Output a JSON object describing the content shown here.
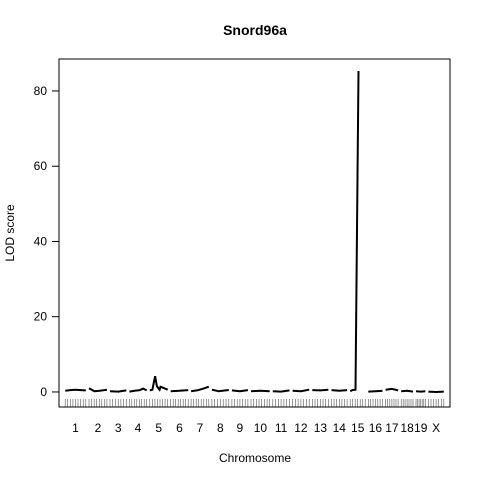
{
  "chart_data": {
    "type": "line",
    "title": "Snord96a",
    "xlabel": "Chromosome",
    "ylabel": "LOD score",
    "ylim": [
      -4,
      88.5
    ],
    "yticks": [
      0,
      20,
      40,
      60,
      80
    ],
    "grid": false,
    "legend": "none",
    "line_color": "#000000",
    "chromosomes": [
      {
        "label": "1",
        "range": [
          0,
          1.0
        ],
        "points": [
          [
            0.0,
            0.3
          ],
          [
            0.25,
            0.5
          ],
          [
            0.5,
            0.6
          ],
          [
            0.75,
            0.5
          ],
          [
            1.0,
            0.4
          ]
        ]
      },
      {
        "label": "2",
        "range": [
          1.16,
          2.03
        ],
        "points": [
          [
            0.0,
            1.0
          ],
          [
            0.3,
            0.2
          ],
          [
            0.6,
            0.3
          ],
          [
            1.0,
            0.6
          ]
        ]
      },
      {
        "label": "3",
        "range": [
          2.18,
          2.97
        ],
        "points": [
          [
            0.0,
            0.2
          ],
          [
            0.5,
            0.1
          ],
          [
            1.0,
            0.4
          ]
        ]
      },
      {
        "label": "4",
        "range": [
          3.12,
          3.96
        ],
        "points": [
          [
            0.0,
            0.1
          ],
          [
            0.3,
            0.3
          ],
          [
            0.6,
            0.5
          ],
          [
            0.8,
            0.9
          ],
          [
            1.0,
            0.4
          ]
        ]
      },
      {
        "label": "5",
        "range": [
          4.11,
          4.98
        ],
        "points": [
          [
            0.0,
            0.4
          ],
          [
            0.15,
            0.6
          ],
          [
            0.3,
            4.2
          ],
          [
            0.4,
            1.5
          ],
          [
            0.55,
            0.6
          ],
          [
            0.6,
            1.4
          ],
          [
            0.8,
            1.0
          ],
          [
            1.0,
            0.6
          ]
        ]
      },
      {
        "label": "6",
        "range": [
          5.13,
          5.98
        ],
        "points": [
          [
            0.0,
            0.2
          ],
          [
            0.5,
            0.3
          ],
          [
            1.0,
            0.5
          ]
        ]
      },
      {
        "label": "7",
        "range": [
          6.12,
          6.98
        ],
        "points": [
          [
            0.0,
            0.2
          ],
          [
            0.4,
            0.5
          ],
          [
            0.7,
            0.9
          ],
          [
            1.0,
            1.4
          ]
        ]
      },
      {
        "label": "8",
        "range": [
          7.13,
          7.95
        ],
        "points": [
          [
            0.0,
            0.6
          ],
          [
            0.4,
            0.2
          ],
          [
            0.8,
            0.4
          ],
          [
            1.0,
            0.5
          ]
        ]
      },
      {
        "label": "9",
        "range": [
          8.1,
          8.88
        ],
        "points": [
          [
            0.0,
            0.4
          ],
          [
            0.5,
            0.2
          ],
          [
            1.0,
            0.5
          ]
        ]
      },
      {
        "label": "10",
        "range": [
          9.03,
          9.94
        ],
        "points": [
          [
            0.0,
            0.2
          ],
          [
            0.5,
            0.3
          ],
          [
            1.0,
            0.2
          ]
        ]
      },
      {
        "label": "11",
        "range": [
          10.09,
          10.9
        ],
        "points": [
          [
            0.0,
            0.2
          ],
          [
            0.5,
            0.1
          ],
          [
            1.0,
            0.4
          ]
        ]
      },
      {
        "label": "12",
        "range": [
          11.05,
          11.86
        ],
        "points": [
          [
            0.0,
            0.3
          ],
          [
            0.5,
            0.2
          ],
          [
            1.0,
            0.6
          ]
        ]
      },
      {
        "label": "13",
        "range": [
          12.01,
          12.79
        ],
        "points": [
          [
            0.0,
            0.5
          ],
          [
            0.5,
            0.4
          ],
          [
            1.0,
            0.6
          ]
        ]
      },
      {
        "label": "14",
        "range": [
          12.94,
          13.7
        ],
        "points": [
          [
            0.0,
            0.5
          ],
          [
            0.5,
            0.3
          ],
          [
            1.0,
            0.5
          ]
        ]
      },
      {
        "label": "15",
        "range": [
          13.85,
          14.58
        ],
        "points": [
          [
            0.0,
            0.2
          ],
          [
            0.15,
            0.5
          ],
          [
            0.35,
            0.6
          ],
          [
            0.55,
            85.3
          ]
        ]
      },
      {
        "label": "16",
        "range": [
          14.73,
          15.42
        ],
        "points": [
          [
            0.0,
            0.1
          ],
          [
            0.5,
            0.2
          ],
          [
            1.0,
            0.3
          ]
        ]
      },
      {
        "label": "17",
        "range": [
          15.57,
          16.18
        ],
        "points": [
          [
            0.0,
            0.6
          ],
          [
            0.5,
            0.8
          ],
          [
            1.0,
            0.4
          ]
        ]
      },
      {
        "label": "18",
        "range": [
          16.33,
          16.9
        ],
        "points": [
          [
            0.0,
            0.2
          ],
          [
            0.5,
            0.3
          ],
          [
            1.0,
            0.1
          ]
        ]
      },
      {
        "label": "19",
        "range": [
          17.05,
          17.5
        ],
        "points": [
          [
            0.0,
            0.2
          ],
          [
            0.5,
            0.1
          ],
          [
            1.0,
            0.2
          ]
        ]
      },
      {
        "label": "X",
        "range": [
          17.65,
          18.4
        ],
        "points": [
          [
            0.0,
            0.1
          ],
          [
            0.5,
            0.0
          ],
          [
            1.0,
            0.1
          ]
        ]
      }
    ],
    "xlim": [
      -0.3,
      18.7
    ]
  }
}
